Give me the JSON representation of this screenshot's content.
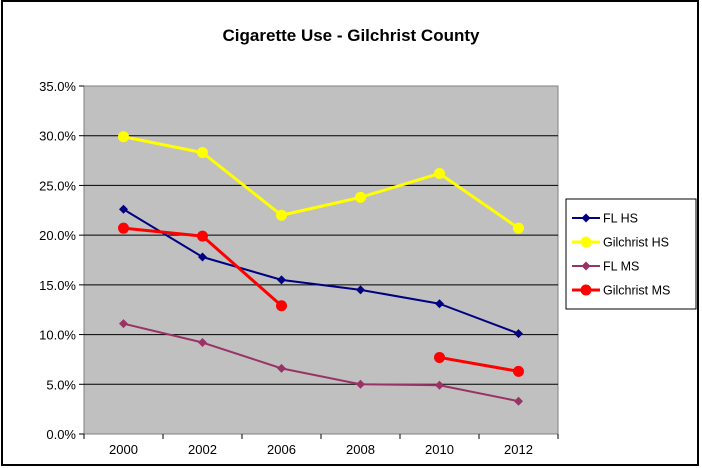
{
  "chart_data": {
    "type": "line",
    "title": "Cigarette Use - Gilchrist County",
    "xlabel": "",
    "ylabel": "",
    "categories": [
      "2000",
      "2002",
      "2006",
      "2008",
      "2010",
      "2012"
    ],
    "ylim": [
      0,
      35
    ],
    "yticks": [
      "0.0%",
      "5.0%",
      "10.0%",
      "15.0%",
      "20.0%",
      "25.0%",
      "30.0%",
      "35.0%"
    ],
    "grid": true,
    "legend_position": "right",
    "plot_background": "#c0c0c0",
    "series": [
      {
        "name": "FL HS",
        "color": "#000080",
        "marker": "diamond",
        "values": [
          22.6,
          17.8,
          15.5,
          14.5,
          13.1,
          10.1
        ]
      },
      {
        "name": "Gilchrist HS",
        "color": "#ffff00",
        "marker": "circle",
        "values": [
          29.9,
          28.3,
          22.0,
          23.8,
          26.2,
          20.7
        ]
      },
      {
        "name": "FL MS",
        "color": "#993366",
        "marker": "diamond",
        "values": [
          11.1,
          9.2,
          6.6,
          5.0,
          4.9,
          3.3
        ]
      },
      {
        "name": "Gilchrist MS",
        "color": "#ff0000",
        "marker": "circle",
        "values": [
          20.7,
          19.9,
          12.9,
          null,
          7.7,
          6.3
        ]
      }
    ]
  }
}
